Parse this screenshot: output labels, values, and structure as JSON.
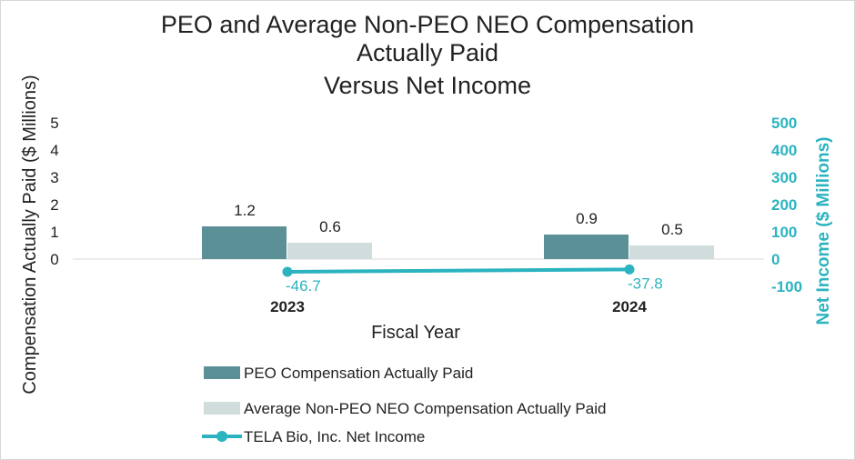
{
  "chart_data": {
    "type": "bar",
    "title_lines": [
      "PEO and Average Non-PEO NEO Compensation",
      "Actually Paid",
      "Versus Net Income"
    ],
    "xlabel": "Fiscal Year",
    "ylabel": "Compensation Actually Paid ($ Millions)",
    "y2label": "Net Income ($ Millions)",
    "categories": [
      "2023",
      "2024"
    ],
    "ylim": [
      0,
      5
    ],
    "y_ticks": [
      "0",
      "1",
      "2",
      "3",
      "4",
      "5"
    ],
    "y2lim": [
      -100,
      500
    ],
    "y2_ticks": [
      "-100",
      "0",
      "100",
      "200",
      "300",
      "400",
      "500"
    ],
    "grid": false,
    "legend_position": "bottom",
    "series": [
      {
        "name": "PEO Compensation Actually Paid",
        "kind": "bar",
        "axis": "left",
        "color": "#5b9196",
        "values": [
          1.2,
          0.9
        ],
        "labels": [
          "1.2",
          "0.9"
        ]
      },
      {
        "name": "Average Non-PEO NEO Compensation Actually Paid",
        "kind": "bar",
        "axis": "left",
        "color": "#d1dcdd",
        "values": [
          0.6,
          0.5
        ],
        "labels": [
          "0.6",
          "0.5"
        ]
      },
      {
        "name": "TELA Bio, Inc. Net Income",
        "kind": "line",
        "axis": "right",
        "color": "#2bb3c0",
        "values": [
          -46.7,
          -37.8
        ],
        "labels": [
          "-46.7",
          "-37.8"
        ]
      }
    ]
  }
}
